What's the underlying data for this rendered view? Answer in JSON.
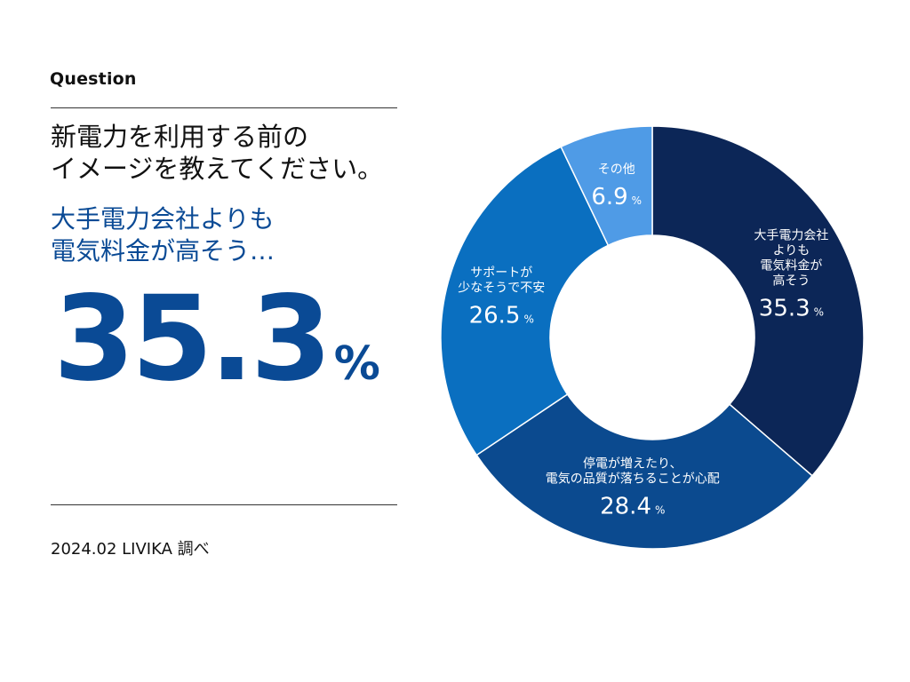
{
  "header": {
    "label": "Question",
    "question_lines": [
      "新電力を利用する前の",
      "イメージを教えてください。"
    ]
  },
  "highlight": {
    "lines": [
      "大手電力会社よりも",
      "電気料金が高そう…"
    ],
    "value": "35.3",
    "unit": "%"
  },
  "footer": {
    "source": "2024.02 LIVIKA 調べ"
  },
  "chart_data": {
    "type": "pie",
    "donut": true,
    "unit": "%",
    "series": [
      {
        "name_lines": [
          "大手電力会社",
          "よりも",
          "電気料金が",
          "高そう"
        ],
        "value": 35.3,
        "color": "#0c2657"
      },
      {
        "name_lines": [
          "停電が増えたり、",
          "電気の品質が落ちることが心配"
        ],
        "value": 28.4,
        "color": "#0b4a8f"
      },
      {
        "name_lines": [
          "サポートが",
          "少なそうで不安"
        ],
        "value": 26.5,
        "color": "#0a6fc0"
      },
      {
        "name_lines": [
          "その他"
        ],
        "value": 6.9,
        "color": "#4f9be6"
      }
    ]
  }
}
